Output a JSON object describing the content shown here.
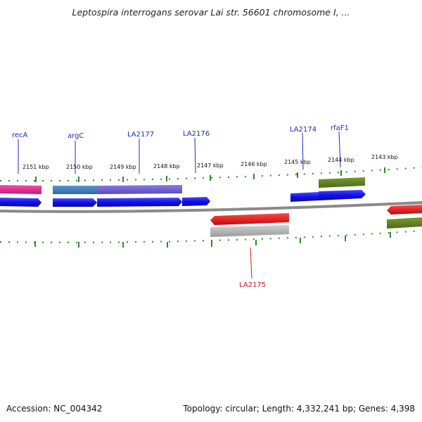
{
  "title": "Leptospira interrogans serovar Lai str. 56601 chromosome I, ...",
  "footer": {
    "accession": "Accession: NC_004342",
    "topology": "Topology: circular; Length: 4,332,241 bp; Genes: 4,398"
  },
  "colors": {
    "gene_blue": "#1010e8",
    "magenta": "#e8208c",
    "steelblue": "#3f7ab8",
    "slate": "#6a5acd",
    "olive": "#5a7a1e",
    "red": "#e81010",
    "gray": "#b0b0b0",
    "backbone": "#8a8a8a",
    "ticks": "#2a8a2a",
    "label_blue": "#1a2bc8",
    "label_red": "#c81a1a"
  },
  "scale_labels": [
    "2151 kbp",
    "2150 kbp",
    "2149 kbp",
    "2148 kbp",
    "2147 kbp",
    "2146 kbp",
    "2145 kbp",
    "2144 kbp",
    "2143 kbp"
  ],
  "gene_labels": [
    {
      "text": "recA",
      "color": "blue"
    },
    {
      "text": "argC",
      "color": "blue"
    },
    {
      "text": "LA2177",
      "color": "blue"
    },
    {
      "text": "LA2176",
      "color": "blue"
    },
    {
      "text": "LA2174",
      "color": "blue"
    },
    {
      "text": "rfaF1",
      "color": "blue"
    },
    {
      "text": "LA2175",
      "color": "red"
    }
  ]
}
